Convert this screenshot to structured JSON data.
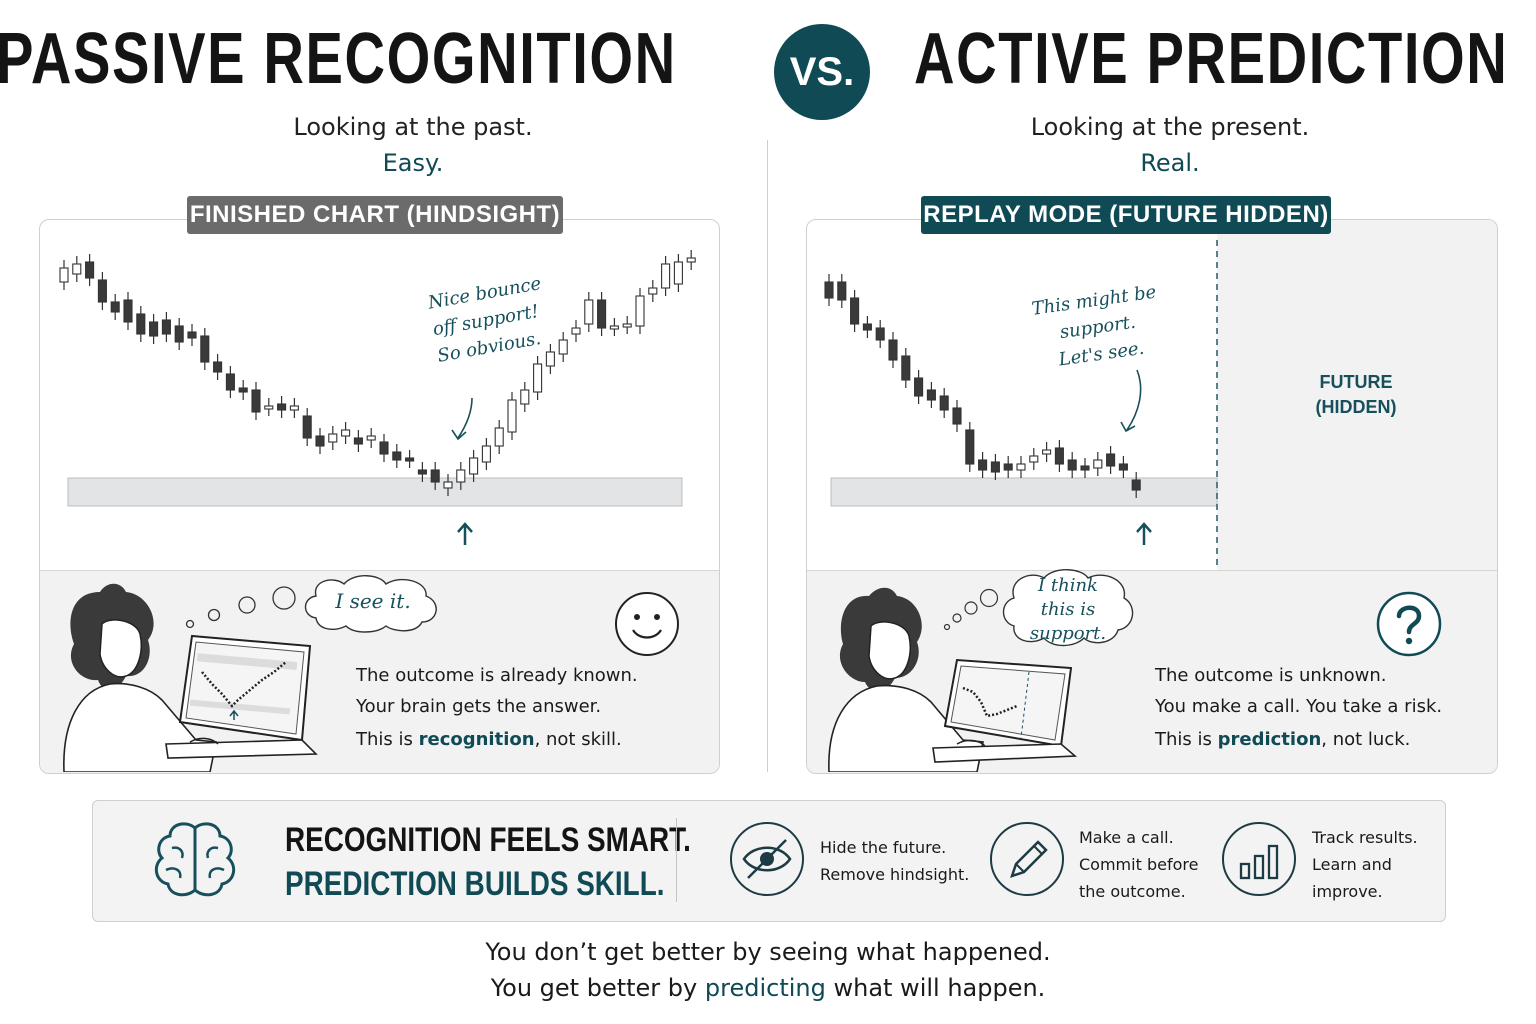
{
  "header": {
    "left_title": "PASSIVE RECOGNITION",
    "vs": "VS.",
    "right_title": "ACTIVE PREDICTION"
  },
  "left": {
    "subtitle": "Looking at the past.",
    "emphasis": "Easy.",
    "tag": "FINISHED CHART (HINDSIGHT)",
    "annotation": [
      "Nice bounce",
      "off support!",
      "So obvious."
    ],
    "thought": "I see it.",
    "line1": "The outcome is already known.",
    "line2": "Your brain gets the answer.",
    "line3_pre": "This is ",
    "line3_hl": "recognition",
    "line3_post": ", not skill."
  },
  "right": {
    "subtitle": "Looking at the present.",
    "emphasis": "Real.",
    "tag": "REPLAY MODE (FUTURE HIDDEN)",
    "annotation": [
      "This might be",
      "support.",
      "Let's see."
    ],
    "hidden_label": [
      "FUTURE",
      "(HIDDEN)"
    ],
    "thought": [
      "I think",
      "this is",
      "support."
    ],
    "line1": "The outcome is unknown.",
    "line2": "You make a call. You take a risk.",
    "line3_pre": "This is ",
    "line3_hl": "prediction",
    "line3_post": ", not luck."
  },
  "footer": {
    "slogan1": "RECOGNITION FEELS SMART.",
    "slogan2": "PREDICTION BUILDS SKILL.",
    "tips": [
      {
        "icon": "eye-slash-icon",
        "lines": [
          "Hide the future.",
          "Remove hindsight."
        ]
      },
      {
        "icon": "pencil-icon",
        "lines": [
          "Make a call.",
          "Commit before",
          "the outcome."
        ]
      },
      {
        "icon": "bar-chart-icon",
        "lines": [
          "Track results.",
          "Learn and",
          "improve."
        ]
      }
    ]
  },
  "closing": {
    "line1": "You don’t get better by seeing what happened.",
    "line2_pre": "You get better by ",
    "line2_hl": "predicting",
    "line2_post": " what will happen."
  },
  "colors": {
    "teal": "#0f4a55",
    "gray_tag": "#6b6b6b",
    "support_band": "#e3e4e6"
  }
}
